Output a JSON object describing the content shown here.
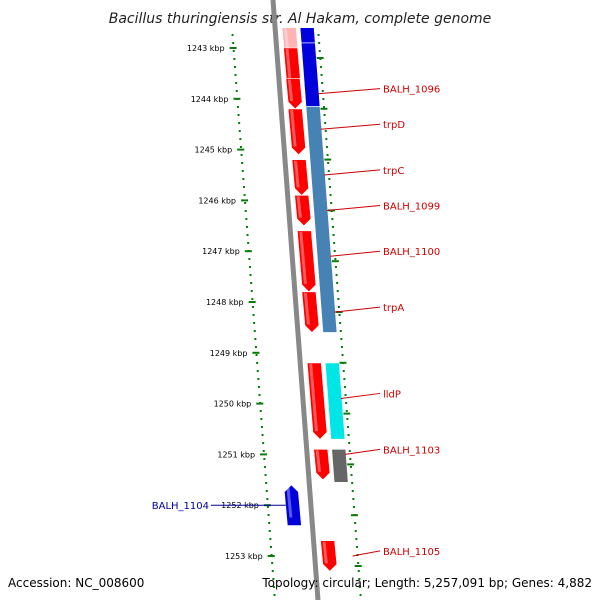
{
  "title": "Bacillus thuringiensis str. Al Hakam, complete genome",
  "footer": {
    "accession": "Accession: NC_008600",
    "summary": "Topology: circular; Length: 5,257,091 bp; Genes: 4,882"
  },
  "colors": {
    "forward_cds": "#ff0000",
    "forward_cds_faint": "#ffb3b3",
    "reverse_cds": "#0000dd",
    "operon": "#4682b4",
    "permease": "#00e5e5",
    "other": "#666666",
    "tick": "#0a7a0a",
    "backbone": "#888888",
    "label_red": "#cc0000",
    "label_blue": "#000099"
  },
  "scale": {
    "unit": "kbp",
    "ticks": [
      {
        "kbp": 1243,
        "label": "1243 kbp"
      },
      {
        "kbp": 1244,
        "label": "1244 kbp"
      },
      {
        "kbp": 1245,
        "label": "1245 kbp"
      },
      {
        "kbp": 1246,
        "label": "1246 kbp"
      },
      {
        "kbp": 1247,
        "label": "1247 kbp"
      },
      {
        "kbp": 1248,
        "label": "1248 kbp"
      },
      {
        "kbp": 1249,
        "label": "1249 kbp"
      },
      {
        "kbp": 1250,
        "label": "1250 kbp"
      },
      {
        "kbp": 1251,
        "label": "1251 kbp"
      },
      {
        "kbp": 1252,
        "label": "1252 kbp"
      },
      {
        "kbp": 1253,
        "label": "1253 kbp"
      }
    ]
  },
  "genes": [
    {
      "name": "",
      "track": "forward",
      "start": 1242.6,
      "end": 1243.5,
      "color": "forward_cds_faint",
      "label_side": "none"
    },
    {
      "name": "",
      "track": "forward",
      "start": 1243.0,
      "end": 1243.9,
      "color": "forward_cds",
      "label_side": "none"
    },
    {
      "name": "",
      "track": "forward",
      "start": 1243.6,
      "end": 1244.2,
      "color": "forward_cds",
      "label_side": "none"
    },
    {
      "name": "",
      "track": "forward",
      "start": 1244.2,
      "end": 1245.1,
      "color": "forward_cds",
      "label_side": "none"
    },
    {
      "name": "",
      "track": "forward",
      "start": 1245.2,
      "end": 1245.9,
      "color": "forward_cds",
      "label_side": "none"
    },
    {
      "name": "",
      "track": "forward",
      "start": 1245.9,
      "end": 1246.5,
      "color": "forward_cds",
      "label_side": "none"
    },
    {
      "name": "",
      "track": "forward",
      "start": 1246.6,
      "end": 1247.8,
      "color": "forward_cds",
      "label_side": "none"
    },
    {
      "name": "",
      "track": "forward",
      "start": 1247.8,
      "end": 1248.6,
      "color": "forward_cds",
      "label_side": "none"
    },
    {
      "name": "",
      "track": "forward",
      "start": 1249.2,
      "end": 1250.7,
      "color": "forward_cds",
      "label_side": "none"
    },
    {
      "name": "",
      "track": "forward",
      "start": 1250.9,
      "end": 1251.5,
      "color": "forward_cds",
      "label_side": "none"
    },
    {
      "name": "",
      "track": "forward",
      "start": 1252.7,
      "end": 1253.3,
      "color": "forward_cds",
      "label_side": "none"
    },
    {
      "name": "BALH_1104",
      "track": "reverse",
      "start": 1251.6,
      "end": 1252.4,
      "color": "reverse_cds",
      "label_side": "left"
    }
  ],
  "feature_band": [
    {
      "name": "",
      "start": 1242.6,
      "end": 1242.9,
      "color": "reverse_cds"
    },
    {
      "name": "",
      "start": 1242.9,
      "end": 1244.15,
      "color": "reverse_cds"
    },
    {
      "name": "",
      "start": 1244.15,
      "end": 1248.6,
      "color": "operon"
    },
    {
      "name": "",
      "start": 1249.2,
      "end": 1250.7,
      "color": "permease"
    },
    {
      "name": "",
      "start": 1250.9,
      "end": 1251.55,
      "color": "other"
    }
  ],
  "labels_right": [
    {
      "name": "BALH_1096",
      "kbp": 1243.8,
      "target_kbp": 1243.9
    },
    {
      "name": "trpD",
      "kbp": 1244.5,
      "target_kbp": 1244.6
    },
    {
      "name": "trpC",
      "kbp": 1245.4,
      "target_kbp": 1245.5
    },
    {
      "name": "BALH_1099",
      "kbp": 1246.1,
      "target_kbp": 1246.2
    },
    {
      "name": "BALH_1100",
      "kbp": 1247.0,
      "target_kbp": 1247.1
    },
    {
      "name": "trpA",
      "kbp": 1248.1,
      "target_kbp": 1248.2
    },
    {
      "name": "lldP",
      "kbp": 1249.8,
      "target_kbp": 1249.9
    },
    {
      "name": "BALH_1103",
      "kbp": 1250.9,
      "target_kbp": 1251.0
    },
    {
      "name": "BALH_1105",
      "kbp": 1252.9,
      "target_kbp": 1253.0
    }
  ]
}
